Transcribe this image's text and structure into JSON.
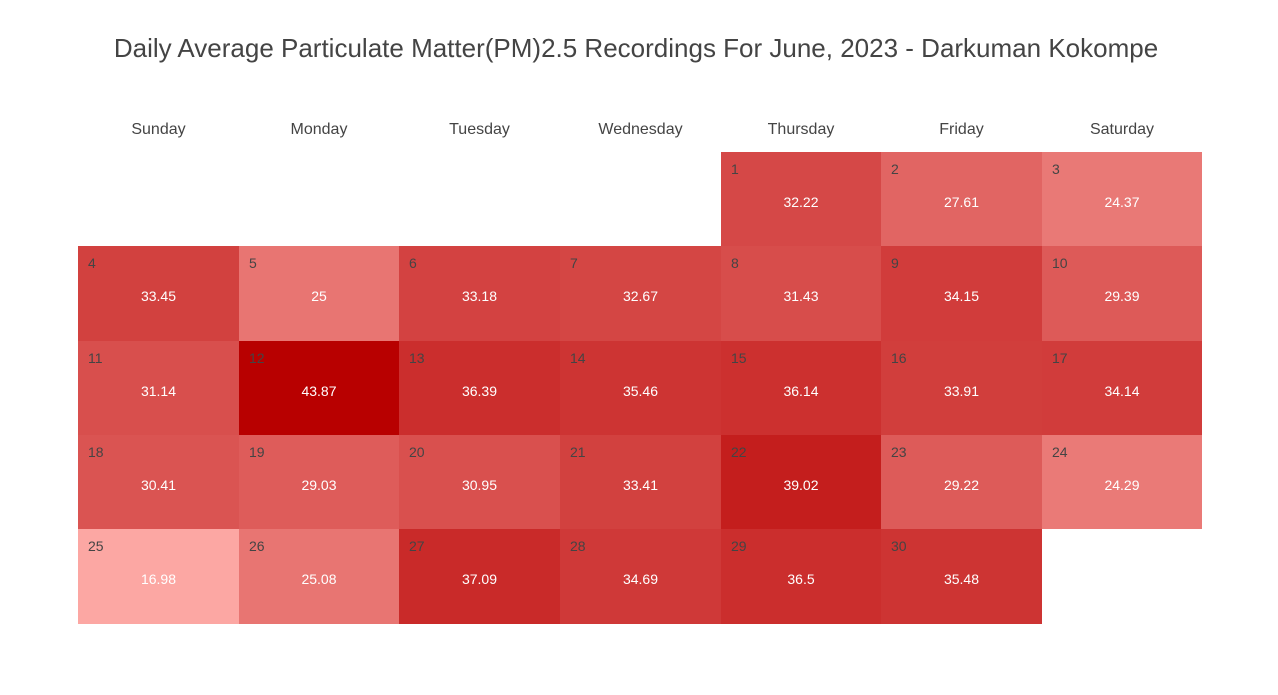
{
  "title": "Daily Average Particulate Matter(PM)2.5 Recordings For June, 2023 - Darkuman Kokompe",
  "chart_data": {
    "type": "heatmap",
    "title": "Daily Average Particulate Matter(PM)2.5 Recordings For June, 2023 - Darkuman Kokompe",
    "weekdays": [
      "Sunday",
      "Monday",
      "Tuesday",
      "Wednesday",
      "Thursday",
      "Friday",
      "Saturday"
    ],
    "first_weekday_index": 4,
    "color_range": [
      16.98,
      43.87
    ],
    "colors": {
      "low": "#fca7a3",
      "high": "#b80000"
    },
    "days": [
      {
        "day": "1",
        "value": "32.22"
      },
      {
        "day": "2",
        "value": "27.61"
      },
      {
        "day": "3",
        "value": "24.37"
      },
      {
        "day": "4",
        "value": "33.45"
      },
      {
        "day": "5",
        "value": "25"
      },
      {
        "day": "6",
        "value": "33.18"
      },
      {
        "day": "7",
        "value": "32.67"
      },
      {
        "day": "8",
        "value": "31.43"
      },
      {
        "day": "9",
        "value": "34.15"
      },
      {
        "day": "10",
        "value": "29.39"
      },
      {
        "day": "11",
        "value": "31.14"
      },
      {
        "day": "12",
        "value": "43.87"
      },
      {
        "day": "13",
        "value": "36.39"
      },
      {
        "day": "14",
        "value": "35.46"
      },
      {
        "day": "15",
        "value": "36.14"
      },
      {
        "day": "16",
        "value": "33.91"
      },
      {
        "day": "17",
        "value": "34.14"
      },
      {
        "day": "18",
        "value": "30.41"
      },
      {
        "day": "19",
        "value": "29.03"
      },
      {
        "day": "20",
        "value": "30.95"
      },
      {
        "day": "21",
        "value": "33.41"
      },
      {
        "day": "22",
        "value": "39.02"
      },
      {
        "day": "23",
        "value": "29.22"
      },
      {
        "day": "24",
        "value": "24.29"
      },
      {
        "day": "25",
        "value": "16.98"
      },
      {
        "day": "26",
        "value": "25.08"
      },
      {
        "day": "27",
        "value": "37.09"
      },
      {
        "day": "28",
        "value": "34.69"
      },
      {
        "day": "29",
        "value": "36.5"
      },
      {
        "day": "30",
        "value": "35.48"
      }
    ]
  }
}
